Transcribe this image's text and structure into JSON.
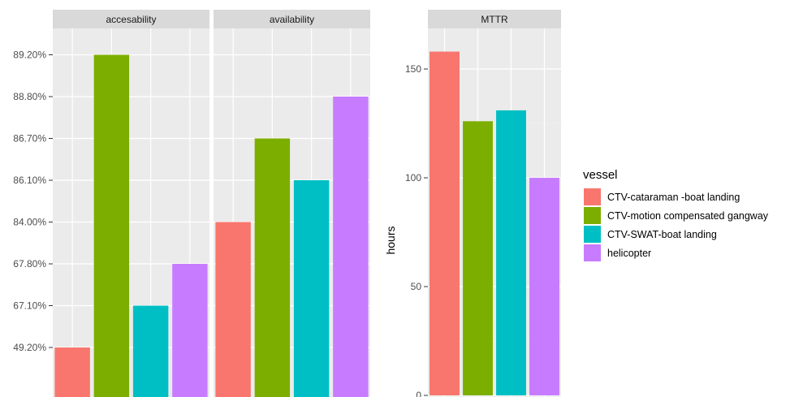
{
  "chart_data": [
    {
      "type": "bar",
      "facet": "accesability",
      "categories": [
        "CTV-cataraman -boat landing",
        "CTV-motion compensated gangway",
        "CTV-SWAT-boat landing",
        "helicopter"
      ],
      "values": [
        49.2,
        89.2,
        67.1,
        67.8
      ],
      "y_scale": "discrete",
      "y_levels": [
        "49.20%",
        "67.10%",
        "67.80%",
        "84.00%",
        "86.10%",
        "86.70%",
        "88.80%",
        "89.20%"
      ],
      "value_labels": [
        "49.20%",
        "89.20%",
        "67.10%",
        "67.80%"
      ],
      "grid": true
    },
    {
      "type": "bar",
      "facet": "availability",
      "categories": [
        "CTV-cataraman -boat landing",
        "CTV-motion compensated gangway",
        "CTV-SWAT-boat landing",
        "helicopter"
      ],
      "values": [
        84.0,
        86.7,
        86.1,
        88.8
      ],
      "y_scale": "discrete",
      "y_levels": [
        "49.20%",
        "67.10%",
        "67.80%",
        "84.00%",
        "86.10%",
        "86.70%",
        "88.80%",
        "89.20%"
      ],
      "value_labels": [
        "84.00%",
        "86.70%",
        "86.10%",
        "88.80%"
      ],
      "grid": true
    },
    {
      "type": "bar",
      "facet": "MTTR",
      "categories": [
        "CTV-cataraman -boat landing",
        "CTV-motion compensated gangway",
        "CTV-SWAT-boat landing",
        "helicopter"
      ],
      "values": [
        158,
        126,
        131,
        100
      ],
      "ylabel": "hours",
      "yticks": [
        0,
        50,
        100,
        150
      ],
      "ylim": [
        0,
        166
      ],
      "grid": true
    }
  ],
  "legend": {
    "title": "vessel",
    "placement": "right",
    "items": [
      {
        "label": "CTV-cataraman -boat landing",
        "color": "#F8766D"
      },
      {
        "label": "CTV-motion compensated gangway",
        "color": "#7CAE00"
      },
      {
        "label": "CTV-SWAT-boat landing",
        "color": "#00BFC4"
      },
      {
        "label": "helicopter",
        "color": "#C77CFF"
      }
    ]
  },
  "colors": {
    "panel_bg": "#EBEBEB",
    "strip_bg": "#D9D9D9",
    "grid": "#FFFFFF"
  }
}
